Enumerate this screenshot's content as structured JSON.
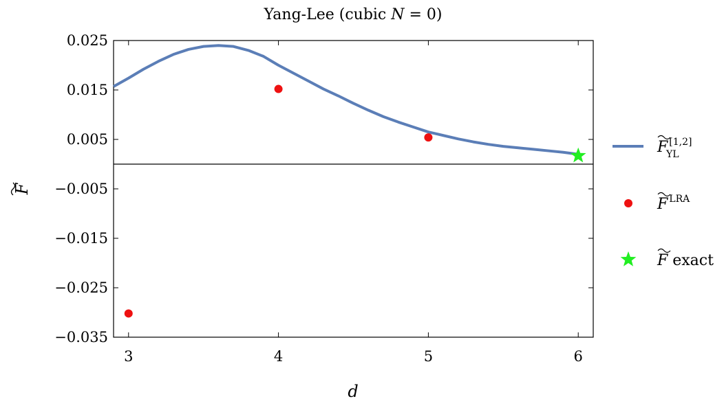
{
  "chart_data": {
    "type": "line",
    "title": {
      "prefix": "Yang-Lee (cubic ",
      "var": "N",
      "suffix": " = 0)"
    },
    "xlabel": "d",
    "ylabel": "F",
    "xlim": [
      2.9,
      6.1
    ],
    "ylim": [
      -0.035,
      0.025
    ],
    "x_ticks": [
      3,
      4,
      5,
      6
    ],
    "x_tick_labels": [
      "3",
      "4",
      "5",
      "6"
    ],
    "y_ticks": [
      0.025,
      0.015,
      0.005,
      -0.005,
      -0.015,
      -0.025,
      -0.035
    ],
    "y_tick_labels": [
      "0.025",
      "0.015",
      "0.005",
      "−0.005",
      "−0.015",
      "−0.025",
      "−0.035"
    ],
    "zero_line": true,
    "grid": false,
    "legend_position": "right",
    "colors": {
      "curve": "#5b7eb7",
      "lra": "#ee1111",
      "exact": "#22ee22"
    },
    "series": [
      {
        "kind": "curve",
        "legend": {
          "base": "F",
          "sup": "[1,2]",
          "sub": "YL"
        },
        "points": [
          [
            2.9,
            0.0157
          ],
          [
            3.0,
            0.0174
          ],
          [
            3.1,
            0.0192
          ],
          [
            3.2,
            0.0208
          ],
          [
            3.3,
            0.0222
          ],
          [
            3.4,
            0.0232
          ],
          [
            3.5,
            0.0238
          ],
          [
            3.6,
            0.024
          ],
          [
            3.7,
            0.0238
          ],
          [
            3.8,
            0.023
          ],
          [
            3.9,
            0.0218
          ],
          [
            4.0,
            0.02
          ],
          [
            4.1,
            0.0184
          ],
          [
            4.2,
            0.0168
          ],
          [
            4.3,
            0.0152
          ],
          [
            4.4,
            0.0138
          ],
          [
            4.5,
            0.0123
          ],
          [
            4.6,
            0.0109
          ],
          [
            4.7,
            0.0096
          ],
          [
            4.8,
            0.0085
          ],
          [
            4.9,
            0.0075
          ],
          [
            5.0,
            0.0065
          ],
          [
            5.1,
            0.0058
          ],
          [
            5.2,
            0.0051
          ],
          [
            5.3,
            0.0045
          ],
          [
            5.4,
            0.004
          ],
          [
            5.5,
            0.0036
          ],
          [
            5.6,
            0.0033
          ],
          [
            5.7,
            0.003
          ],
          [
            5.8,
            0.0027
          ],
          [
            5.9,
            0.0024
          ],
          [
            6.0,
            0.002
          ]
        ]
      },
      {
        "kind": "dots",
        "legend": {
          "base": "F",
          "sup": "LRA",
          "sub": ""
        },
        "points": [
          [
            3,
            -0.0302
          ],
          [
            4,
            0.0152
          ],
          [
            5,
            0.0054
          ]
        ]
      },
      {
        "kind": "star",
        "legend": {
          "base": "F",
          "sup": "",
          "sub": "",
          "suffix": " exact"
        },
        "points": [
          [
            6,
            0.0017
          ]
        ]
      }
    ]
  }
}
